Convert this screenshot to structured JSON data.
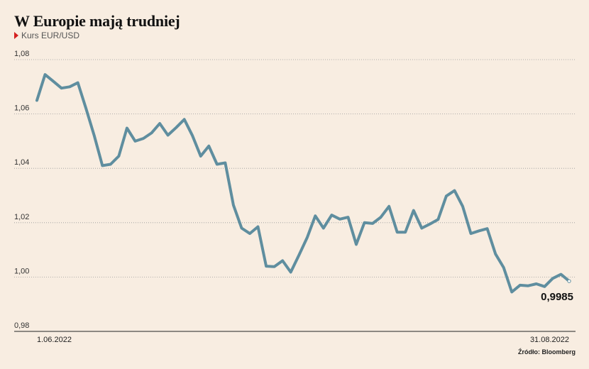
{
  "header": {
    "title": "W Europie mają trudniej",
    "subtitle": "Kurs EUR/USD"
  },
  "source": "Źródło: Bloomberg",
  "colors": {
    "line": "#5f8e9f",
    "marker": "#d42020",
    "background": "#f8ede1",
    "grid": "#999999"
  },
  "chart_data": {
    "type": "line",
    "title": "W Europie mają trudniej",
    "subtitle": "Kurs EUR/USD",
    "ylim": [
      0.98,
      1.08
    ],
    "yticks": [
      0.98,
      1.0,
      1.02,
      1.04,
      1.06,
      1.08
    ],
    "ytick_labels": [
      "0,98",
      "1,00",
      "1,02",
      "1,04",
      "1,06",
      "1,08"
    ],
    "x_start_label": "1.06.2022",
    "x_end_label": "31.08.2022",
    "last_value_label": "0,9985",
    "grid": "horizontal dotted",
    "series": [
      {
        "values": [
          1.065,
          1.0745,
          1.072,
          1.0695,
          1.07,
          1.0715,
          1.062,
          1.052,
          1.041,
          1.0415,
          1.0445,
          1.0548,
          1.05,
          1.051,
          1.053,
          1.0565,
          1.0522,
          1.055,
          1.058,
          1.052,
          1.0445,
          1.0482,
          1.0415,
          1.042,
          1.0265,
          1.018,
          1.016,
          1.0185,
          1.004,
          1.0038,
          1.006,
          1.0018,
          1.008,
          1.0145,
          1.0225,
          1.018,
          1.0228,
          1.0213,
          1.022,
          1.012,
          1.02,
          1.0197,
          1.022,
          1.026,
          1.0165,
          1.0165,
          1.0245,
          1.018,
          1.0195,
          1.0212,
          1.0298,
          1.0318,
          1.026,
          1.016,
          1.017,
          1.0178,
          1.0085,
          1.0035,
          0.9945,
          0.997,
          0.9968,
          0.9975,
          0.9965,
          0.9995,
          1.001,
          0.9985
        ]
      }
    ]
  }
}
